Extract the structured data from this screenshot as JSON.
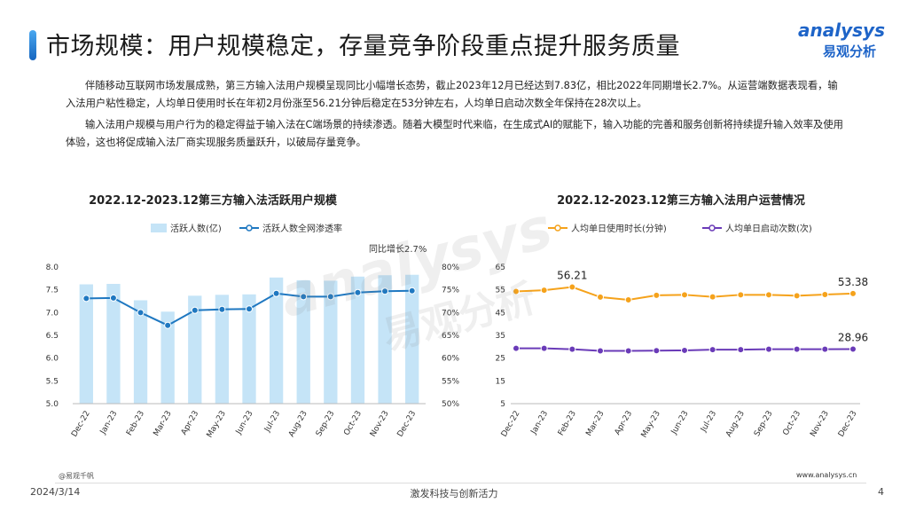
{
  "header": {
    "title": "市场规模：用户规模稳定，存量竞争阶段重点提升服务质量",
    "logo_en": "analysys",
    "logo_cn": "易观分析"
  },
  "paragraphs": [
    "伴随移动互联网市场发展成熟，第三方输入法用户规模呈现同比小幅增长态势，截止2023年12月已经达到7.83亿，相比2022年同期增长2.7%。从运营端数据表现看，输入法用户粘性稳定，人均单日使用时长在年初2月份涨至56.21分钟后稳定在53分钟左右，人均单日启动次数全年保持在28次以上。",
    "输入法用户规模与用户行为的稳定得益于输入法在C端场景的持续渗透。随着大模型时代来临，在生成式AI的赋能下，输入功能的完善和服务创新将持续提升输入效率及使用体验，这也将促成输入法厂商实现服务质量跃升，以破局存量竞争。"
  ],
  "watermark": {
    "en": "analysys",
    "cn": "易观分析"
  },
  "colors": {
    "bar": "#c5e4f7",
    "line_blue": "#1f78c1",
    "line_orange": "#f5a21b",
    "line_purple": "#6a3bb8"
  },
  "chart_data": [
    {
      "type": "bar",
      "title": "2022.12-2023.12第三方输入法活跃用户规模",
      "categories": [
        "Dec-22",
        "Jan-23",
        "Feb-23",
        "Mar-23",
        "Apr-23",
        "May-23",
        "Jun-23",
        "Jul-23",
        "Aug-23",
        "Sep-23",
        "Oct-23",
        "Nov-23",
        "Dec-23"
      ],
      "series": [
        {
          "name": "活跃人数(亿)",
          "type": "bar",
          "axis": "left",
          "values": [
            7.62,
            7.63,
            7.27,
            7.02,
            7.37,
            7.39,
            7.4,
            7.77,
            7.71,
            7.7,
            7.79,
            7.82,
            7.83
          ]
        },
        {
          "name": "活跃人数全网渗透率",
          "type": "line",
          "axis": "right",
          "values": [
            0.731,
            0.732,
            0.7,
            0.672,
            0.705,
            0.707,
            0.708,
            0.742,
            0.735,
            0.735,
            0.744,
            0.747,
            0.748
          ]
        }
      ],
      "yleft": {
        "min": 5.0,
        "max": 8.0,
        "ticks": [
          "5.0",
          "5.5",
          "6.0",
          "6.5",
          "7.0",
          "7.5",
          "8.0"
        ]
      },
      "yright": {
        "min": 0.5,
        "max": 0.8,
        "ticks": [
          "50%",
          "55%",
          "60%",
          "65%",
          "70%",
          "75%",
          "80%"
        ]
      },
      "annotation": "同比增长2.7%",
      "legend": "top-center"
    },
    {
      "type": "line",
      "title": "2022.12-2023.12第三方输入法用户运营情况",
      "categories": [
        "Dec-22",
        "Jan-23",
        "Feb-23",
        "Mar-23",
        "Apr-23",
        "May-23",
        "Jun-23",
        "Jul-23",
        "Aug-23",
        "Sep-23",
        "Oct-23",
        "Nov-23",
        "Dec-23"
      ],
      "series": [
        {
          "name": "人均单日使用时长(分钟)",
          "color_key": "line_orange",
          "values": [
            54.3,
            54.8,
            56.21,
            51.8,
            50.6,
            52.6,
            52.8,
            51.9,
            52.8,
            52.8,
            52.4,
            52.9,
            53.38
          ]
        },
        {
          "name": "人均单日启动次数(次)",
          "color_key": "line_purple",
          "values": [
            29.3,
            29.3,
            28.9,
            28.2,
            28.2,
            28.3,
            28.4,
            28.7,
            28.7,
            28.9,
            28.9,
            28.9,
            28.96
          ]
        }
      ],
      "y": {
        "min": 5,
        "max": 65,
        "ticks": [
          "5",
          "15",
          "25",
          "35",
          "45",
          "55",
          "65"
        ]
      },
      "point_labels": [
        {
          "series": 0,
          "index": 2,
          "text": "56.21"
        },
        {
          "series": 0,
          "index": 12,
          "text": "53.38"
        },
        {
          "series": 1,
          "index": 12,
          "text": "28.96"
        }
      ],
      "legend": "top-center"
    }
  ],
  "footer": {
    "source": "@易观千帆",
    "website": "www.analysys.cn",
    "date": "2024/3/14",
    "slogan": "激发科技与创新活力",
    "page": "4"
  }
}
